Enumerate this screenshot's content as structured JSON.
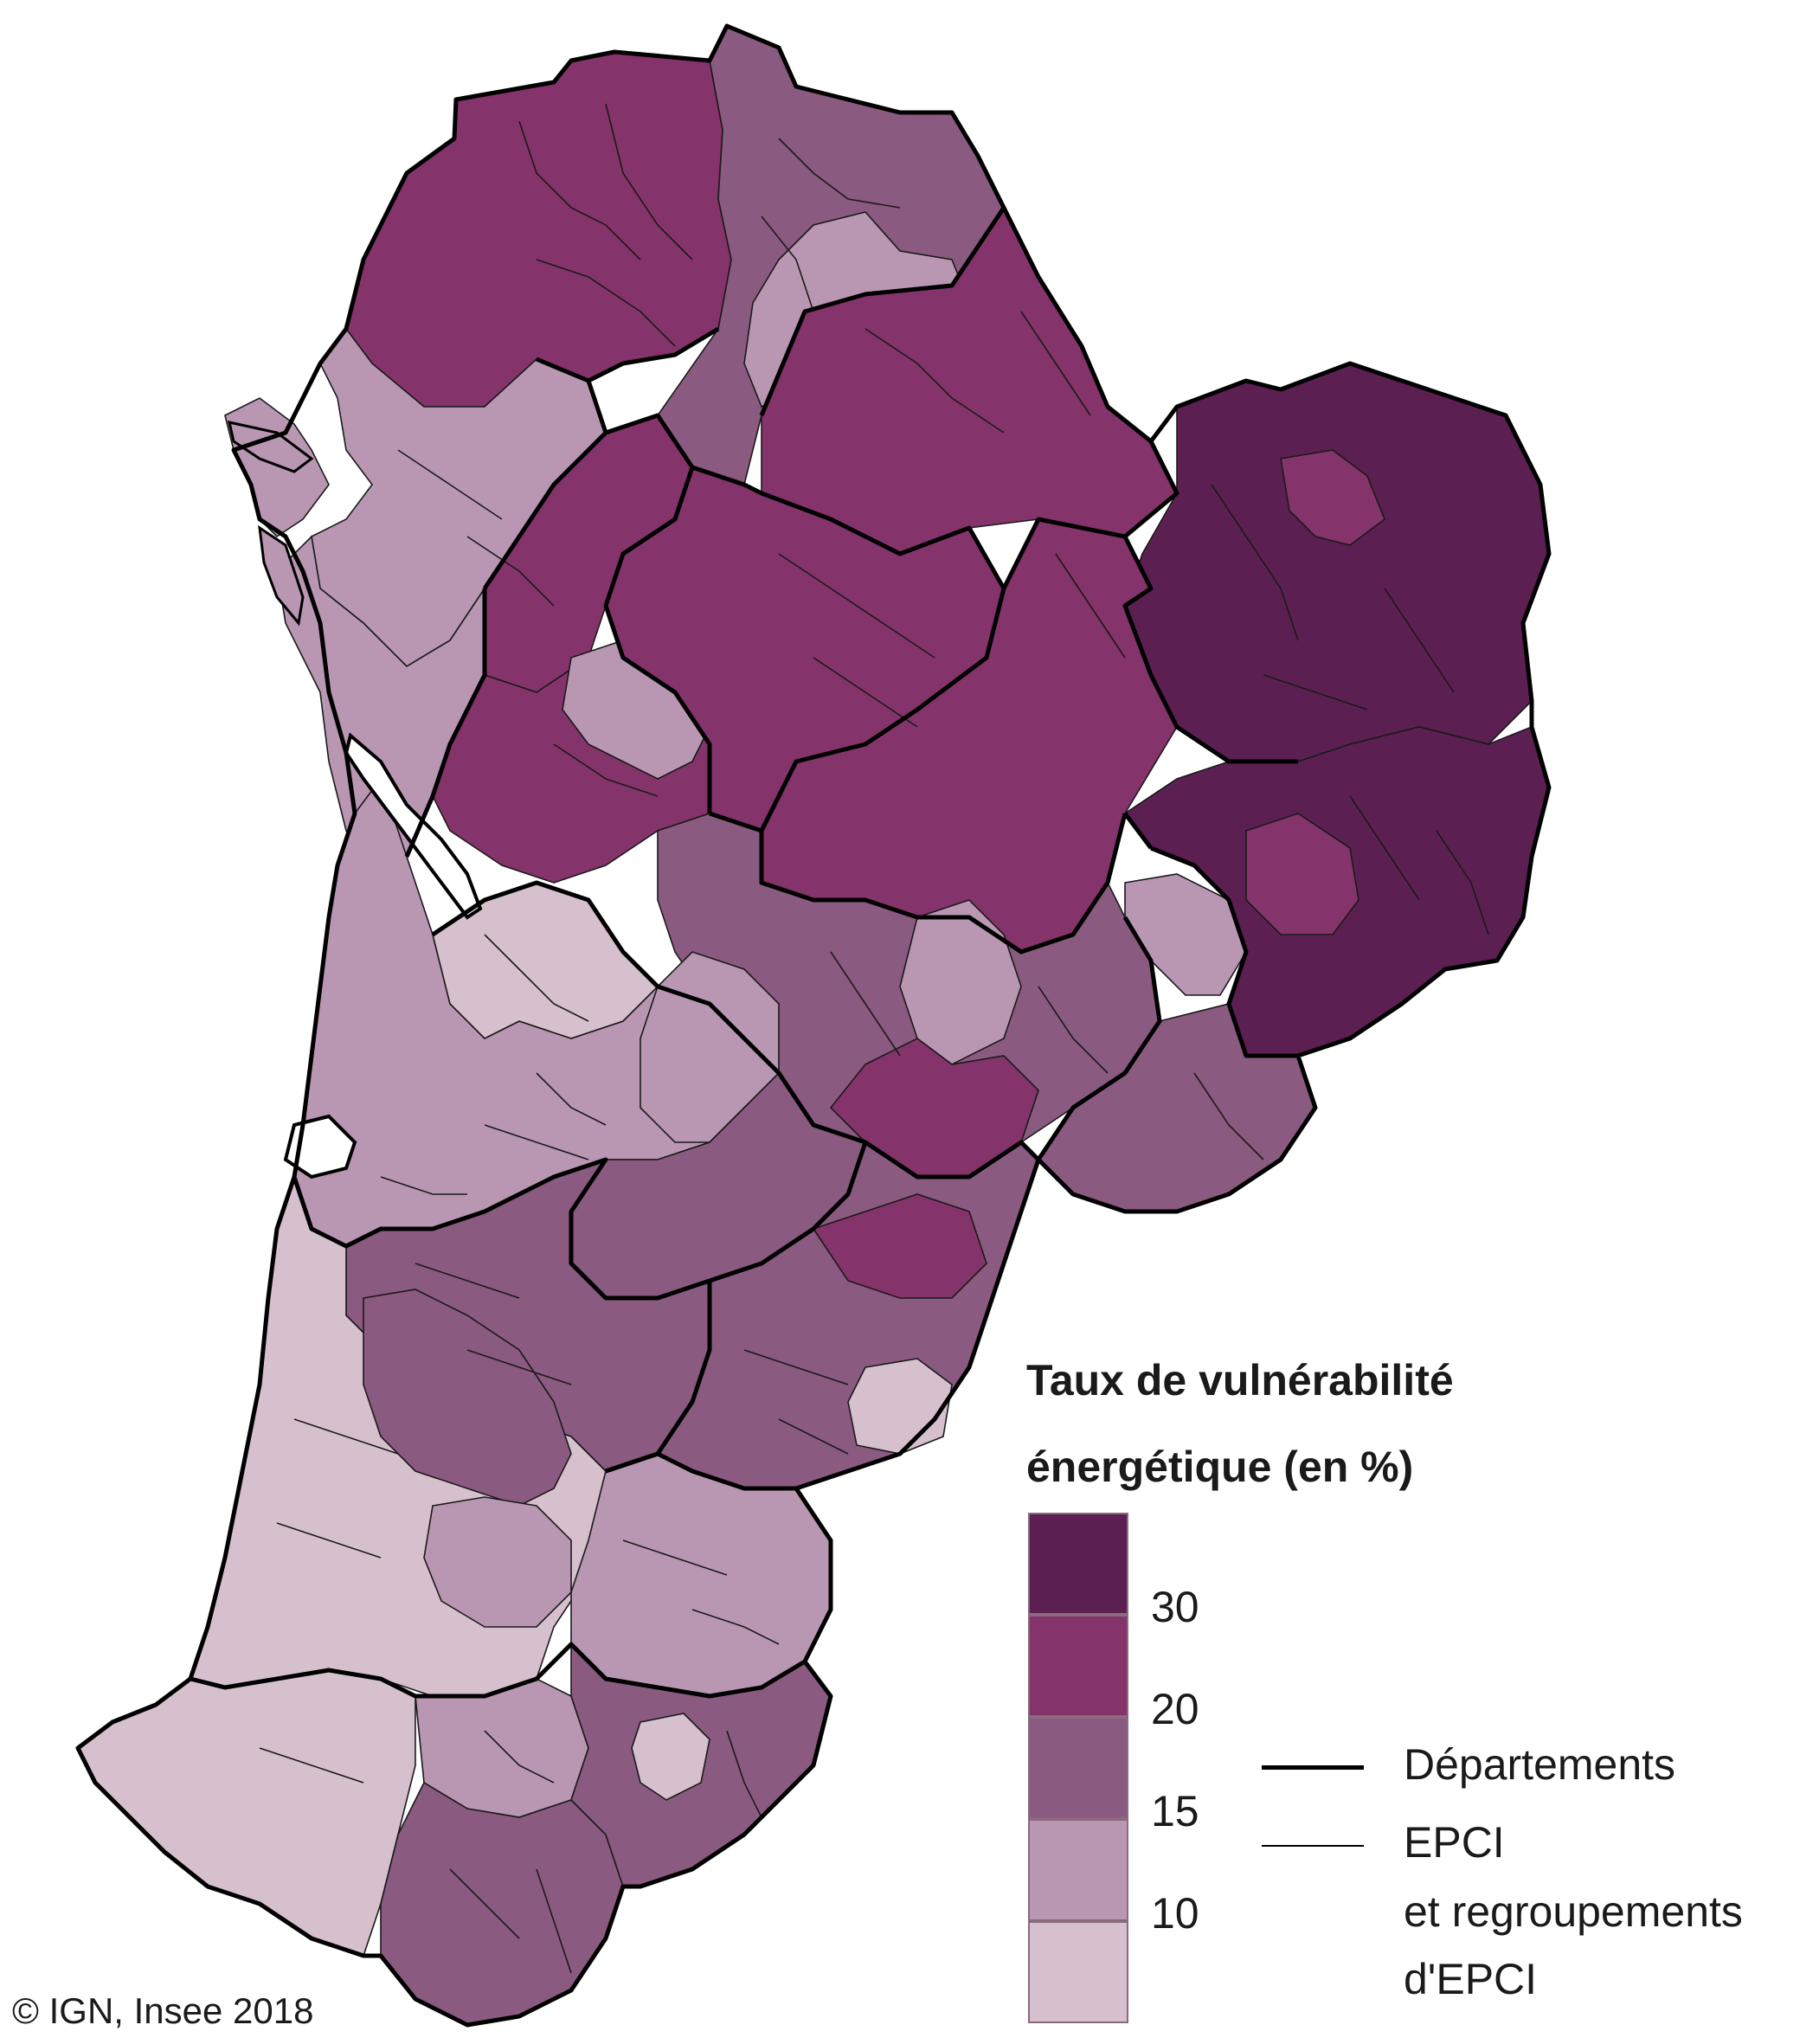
{
  "legend": {
    "title_line1": "Taux de vulnérabilité",
    "title_line2": "énergétique (en %)",
    "classes": [
      {
        "color": "#5c1f52",
        "range": "30+"
      },
      {
        "color": "#85336b",
        "range": "20-30"
      },
      {
        "color": "#8a5a80",
        "range": "15-20"
      },
      {
        "color": "#b997b3",
        "range": "10-15"
      },
      {
        "color": "#d7c0cd",
        "range": "<10"
      }
    ],
    "ticks": [
      "30",
      "20",
      "15",
      "10"
    ],
    "boundaries": {
      "departements": "Départements",
      "epci_line1": "EPCI",
      "epci_line2": "et regroupements",
      "epci_line3": "d'EPCI"
    }
  },
  "credit": "© IGN, Insee 2018",
  "regions": [
    {
      "name": "north-west",
      "cls": 1
    },
    {
      "name": "north-middle",
      "cls": 2
    },
    {
      "name": "north-center-light",
      "cls": 3
    },
    {
      "name": "north-east",
      "cls": 1
    },
    {
      "name": "coast-north",
      "cls": 3
    },
    {
      "name": "coast-islands",
      "cls": 3
    },
    {
      "name": "charente-maritime-west",
      "cls": 3
    },
    {
      "name": "charente-west",
      "cls": 1
    },
    {
      "name": "charente-center",
      "cls": 1
    },
    {
      "name": "charente-light-1",
      "cls": 3
    },
    {
      "name": "charente-light-2",
      "cls": 4
    },
    {
      "name": "haute-vienne-north",
      "cls": 1
    },
    {
      "name": "haute-vienne-light",
      "cls": 3
    },
    {
      "name": "creuse",
      "cls": 0
    },
    {
      "name": "creuse-center",
      "cls": 1
    },
    {
      "name": "correze-haute",
      "cls": 0
    },
    {
      "name": "correze-light",
      "cls": 3
    },
    {
      "name": "correze-center",
      "cls": 1
    },
    {
      "name": "dordogne-north",
      "cls": 1
    },
    {
      "name": "dordogne-center",
      "cls": 2
    },
    {
      "name": "dordogne-light",
      "cls": 3
    },
    {
      "name": "dordogne-south",
      "cls": 1
    },
    {
      "name": "correze-south",
      "cls": 2
    },
    {
      "name": "gironde-coast",
      "cls": 3
    },
    {
      "name": "gironde-center",
      "cls": 4
    },
    {
      "name": "gironde-east",
      "cls": 3
    },
    {
      "name": "gironde-south-east",
      "cls": 2
    },
    {
      "name": "lot-et-garonne-west",
      "cls": 2
    },
    {
      "name": "lot-et-garonne-east",
      "cls": 2
    },
    {
      "name": "lot-et-garonne-light",
      "cls": 4
    },
    {
      "name": "lot-et-garonne-north",
      "cls": 1
    },
    {
      "name": "landes-coast",
      "cls": 4
    },
    {
      "name": "landes-center",
      "cls": 2
    },
    {
      "name": "landes-light",
      "cls": 3
    },
    {
      "name": "landes-south",
      "cls": 3
    },
    {
      "name": "pyrenees-atlantiques-west",
      "cls": 4
    },
    {
      "name": "pyrenees-atlantiques-center",
      "cls": 3
    },
    {
      "name": "pyrenees-atlantiques-south",
      "cls": 2
    },
    {
      "name": "pyrenees-atlantiques-east",
      "cls": 2
    },
    {
      "name": "pau-light",
      "cls": 4
    }
  ]
}
